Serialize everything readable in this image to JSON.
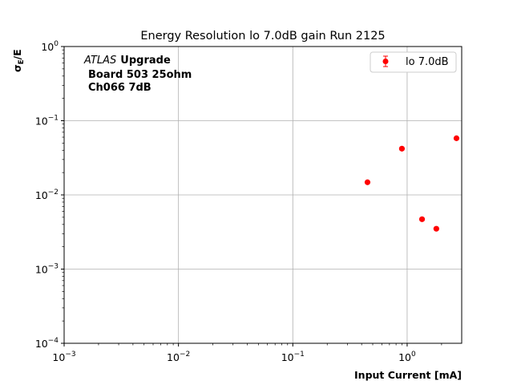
{
  "chart_data": {
    "type": "scatter",
    "title": "Energy Resolution lo 7.0dB gain Run 2125",
    "xlabel": "Input Current [mA]",
    "ylabel_main": "σ",
    "ylabel_sub": "E",
    "ylabel_tail": "/E",
    "xscale": "log",
    "yscale": "log",
    "xlim": [
      0.001,
      3.0
    ],
    "ylim": [
      0.0001,
      1.0
    ],
    "grid": true,
    "legend_position": "top-right",
    "x_ticks": [
      {
        "value": 0.001,
        "base": "10",
        "exp": "−3"
      },
      {
        "value": 0.01,
        "base": "10",
        "exp": "−2"
      },
      {
        "value": 0.1,
        "base": "10",
        "exp": "−1"
      },
      {
        "value": 1,
        "base": "10",
        "exp": "0"
      }
    ],
    "y_ticks": [
      {
        "value": 0.0001,
        "base": "10",
        "exp": "−4"
      },
      {
        "value": 0.001,
        "base": "10",
        "exp": "−3"
      },
      {
        "value": 0.01,
        "base": "10",
        "exp": "−2"
      },
      {
        "value": 0.1,
        "base": "10",
        "exp": "−1"
      },
      {
        "value": 1,
        "base": "10",
        "exp": "0"
      }
    ],
    "annotation": {
      "atlas": "ATLAS",
      "upgrade": "Upgrade",
      "line2": "Board 503 25ohm",
      "line3": "Ch066 7dB"
    },
    "series": [
      {
        "name": "lo 7.0dB",
        "color": "#ff0000",
        "points": [
          {
            "x": 0.45,
            "y": 0.0148
          },
          {
            "x": 0.9,
            "y": 0.042
          },
          {
            "x": 1.35,
            "y": 0.0047
          },
          {
            "x": 1.8,
            "y": 0.0035
          },
          {
            "x": 2.7,
            "y": 0.058
          }
        ]
      }
    ]
  }
}
